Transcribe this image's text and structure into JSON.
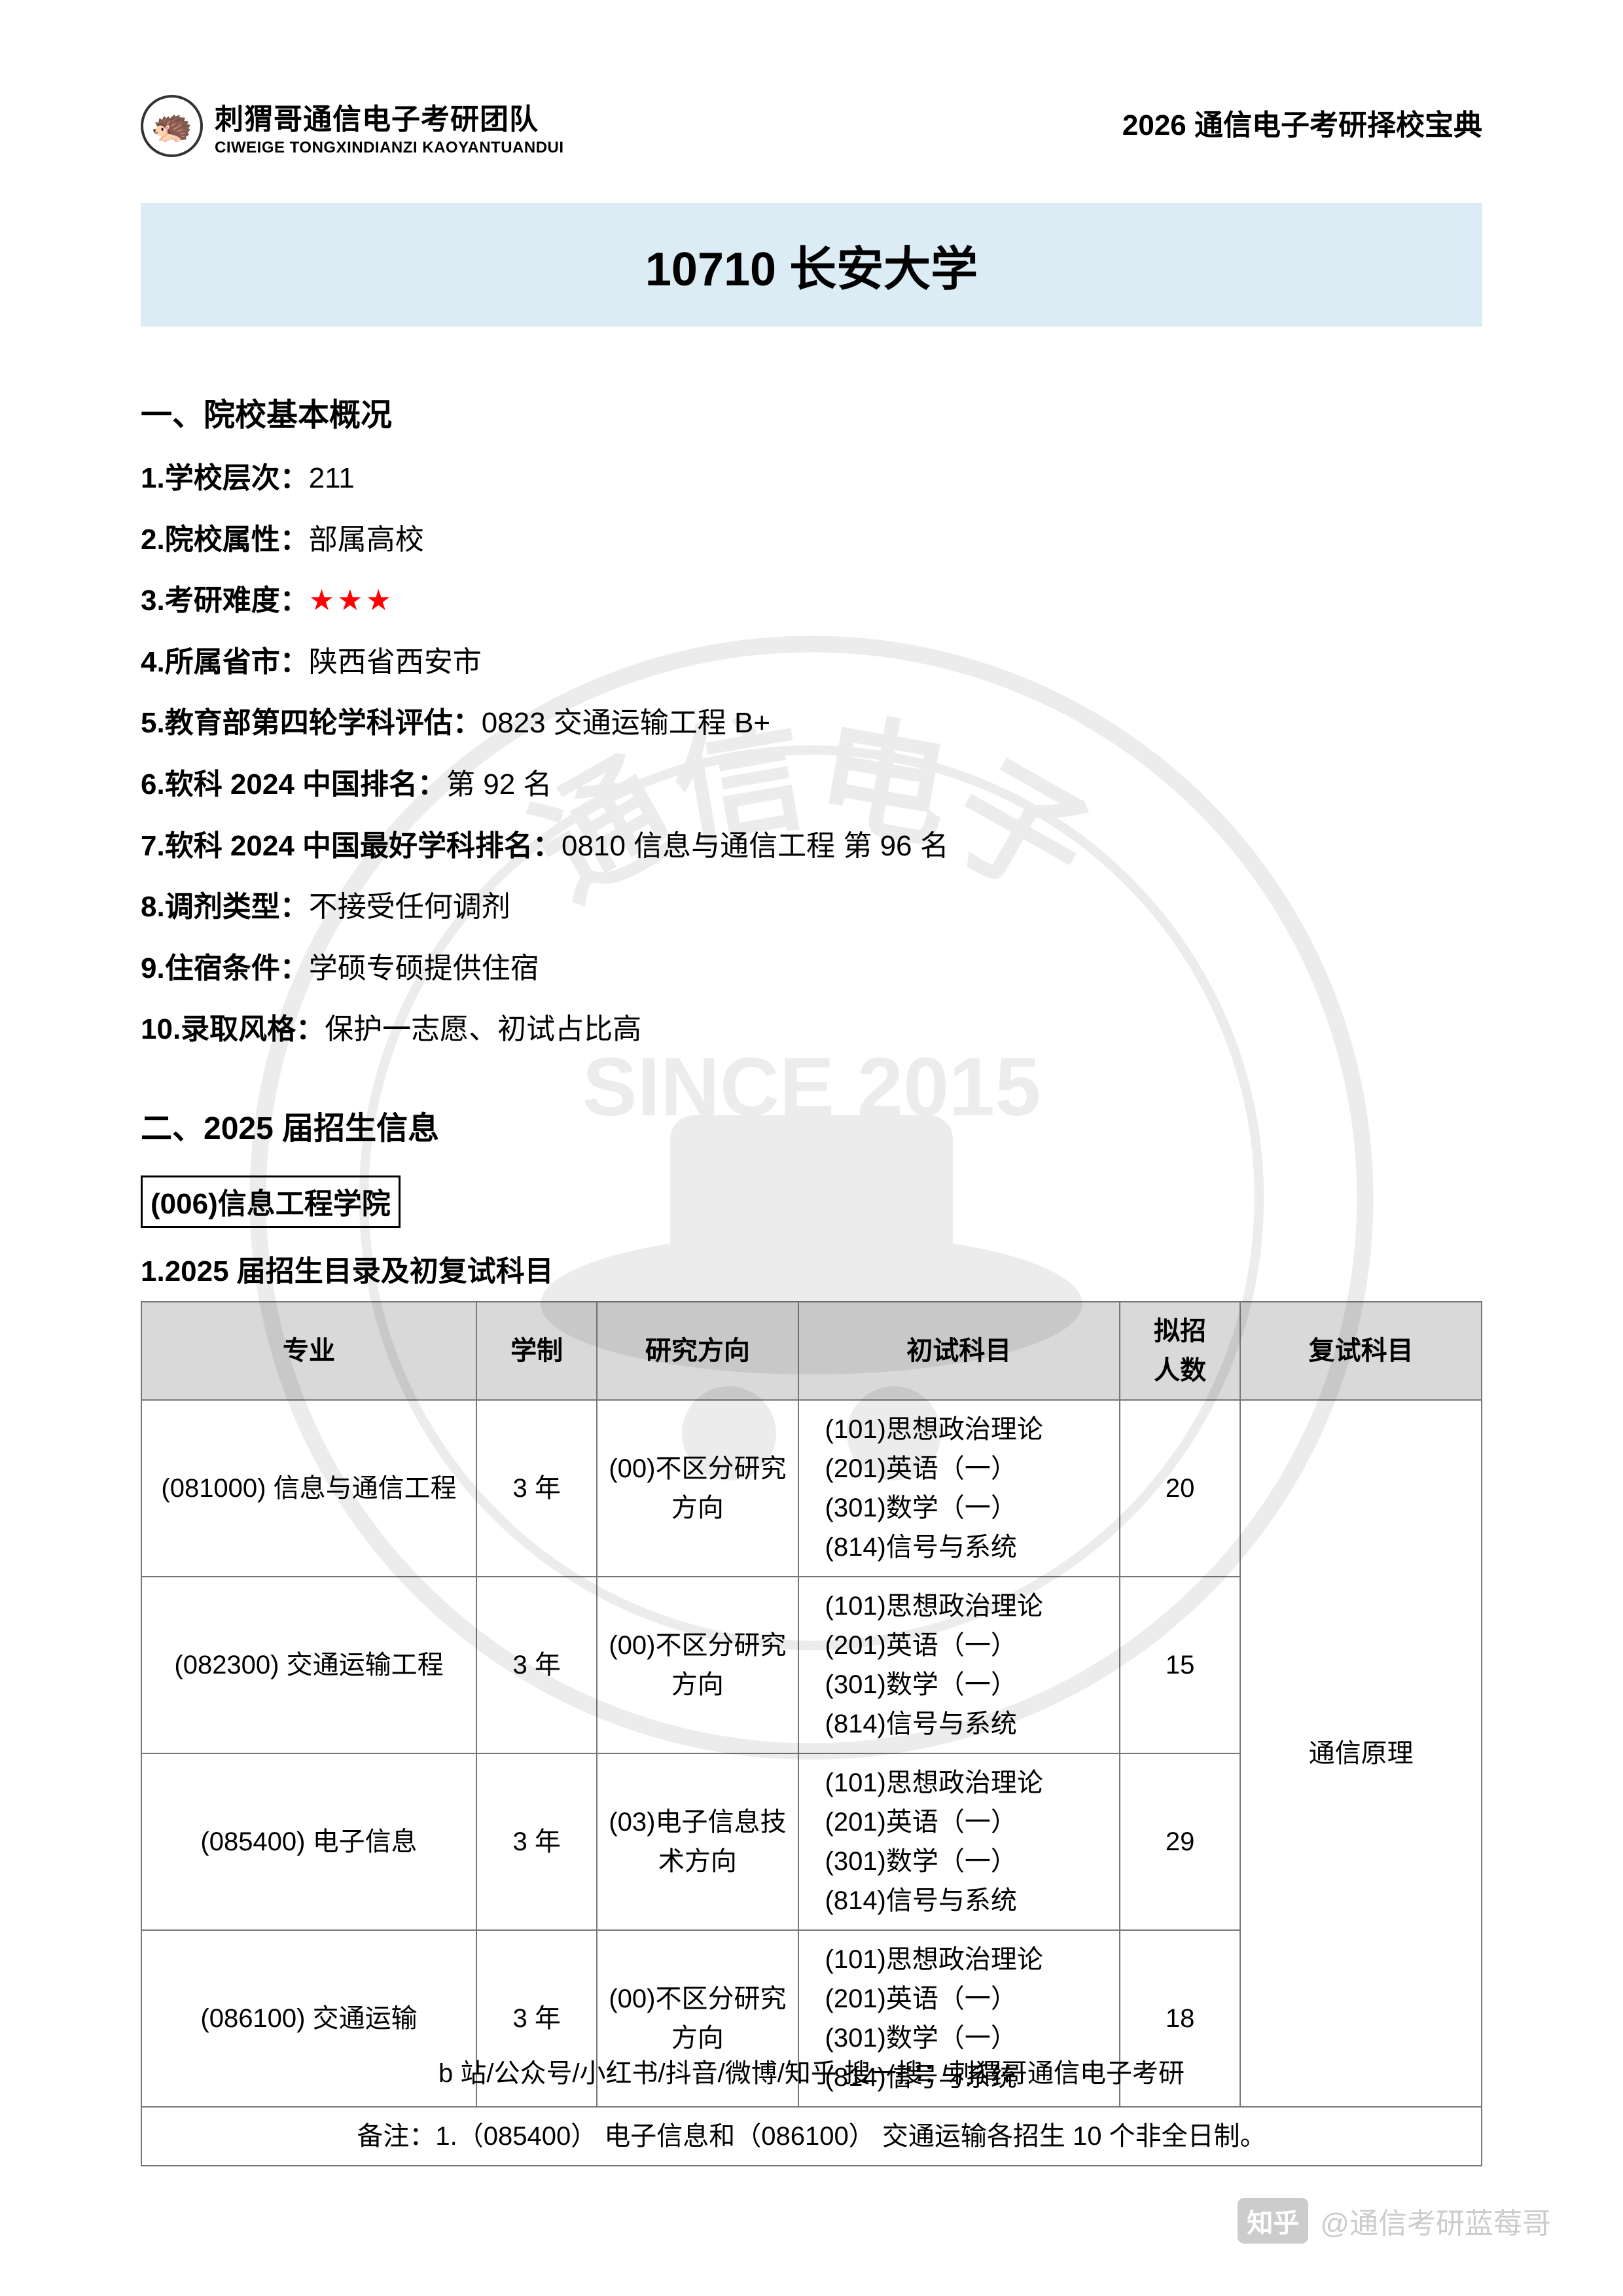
{
  "header": {
    "logo_cn": "刺猬哥通信电子考研团队",
    "logo_en": "CIWEIGE TONGXINDIANZI KAOYANTUANDUI",
    "right": "2026 通信电子考研择校宝典"
  },
  "title": "10710 长安大学",
  "section1": {
    "heading": "一、院校基本概况",
    "items": [
      {
        "label": "1.学校层次：",
        "value": "211"
      },
      {
        "label": "2.院校属性：",
        "value": "部属高校"
      },
      {
        "label": "3.考研难度：",
        "value": "★★★",
        "stars": true
      },
      {
        "label": "4.所属省市：",
        "value": "陕西省西安市"
      },
      {
        "label": "5.教育部第四轮学科评估：",
        "value": "0823 交通运输工程 B+"
      },
      {
        "label": "6.软科 2024 中国排名：",
        "value": "第 92 名"
      },
      {
        "label": "7.软科 2024 中国最好学科排名：",
        "value": "0810 信息与通信工程  第 96 名"
      },
      {
        "label": "8.调剂类型：",
        "value": "不接受任何调剂"
      },
      {
        "label": "9.住宿条件：",
        "value": "学硕专硕提供住宿"
      },
      {
        "label": "10.录取风格：",
        "value": "保护一志愿、初试占比高"
      }
    ]
  },
  "section2": {
    "heading": "二、2025 届招生信息",
    "college": "(006)信息工程学院",
    "sub": "1.2025 届招生目录及初复试科目"
  },
  "table": {
    "columns": [
      "专业",
      "学制",
      "研究方向",
      "初试科目",
      "拟招\n人数",
      "复试科目"
    ],
    "col_widths": [
      "25%",
      "9%",
      "15%",
      "24%",
      "9%",
      "18%"
    ],
    "rows": [
      {
        "major": "(081000)  信息与通信工程",
        "years": "3 年",
        "dir": "(00)不区分研究方向",
        "subjects": "(101)思想政治理论\n(201)英语（一）\n(301)数学（一）\n(814)信号与系统",
        "quota": "20"
      },
      {
        "major": "(082300)  交通运输工程",
        "years": "3 年",
        "dir": "(00)不区分研究方向",
        "subjects": "(101)思想政治理论\n(201)英语（一）\n(301)数学（一）\n(814)信号与系统",
        "quota": "15"
      },
      {
        "major": "(085400)  电子信息",
        "years": "3 年",
        "dir": "(03)电子信息技术方向",
        "subjects": "(101)思想政治理论\n(201)英语（一）\n(301)数学（一）\n(814)信号与系统",
        "quota": "29"
      },
      {
        "major": "(086100)  交通运输",
        "years": "3 年",
        "dir": "(00)不区分研究方向",
        "subjects": "(101)思想政治理论\n(201)英语（一）\n(301)数学（一）\n(814)信号与系统",
        "quota": "18"
      }
    ],
    "retest_merged": "通信原理",
    "note": "备注：1.（085400） 电子信息和（086100） 交通运输各招生 10 个非全日制。"
  },
  "footer": "b 站/公众号/小红书/抖音/微博/知乎  搜一搜：刺猬哥通信电子考研",
  "zhihu": {
    "badge": "知乎",
    "user": "@通信考研蓝莓哥"
  },
  "watermark": {
    "top": "通信电子",
    "year": "SINCE 2015"
  },
  "colors": {
    "banner_bg": "#dcecf5",
    "table_header_bg": "#d9d9d9",
    "border": "#777777",
    "star": "#ff0000",
    "zhihu_gray": "#cccccc"
  }
}
